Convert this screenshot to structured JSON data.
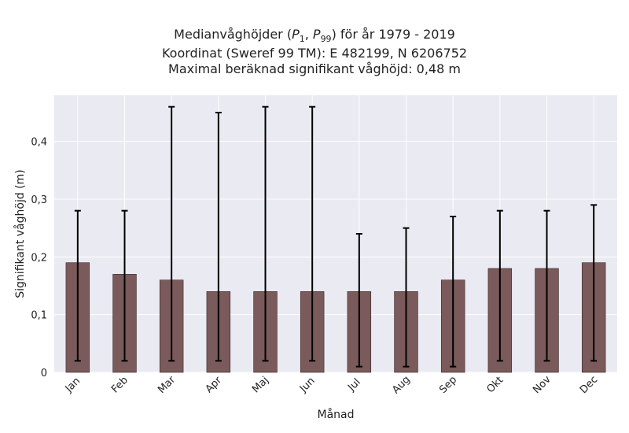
{
  "chart_data": {
    "type": "bar",
    "title_lines": [
      "Medianvåghöjder (P1, P99) för år 1979 - 2019",
      "Koordinat (Sweref 99 TM): E 482199, N 6206752",
      "Maximal beräknad signifikant våghöjd: 0,48 m"
    ],
    "xlabel": "Månad",
    "ylabel": "Signifikant våghöjd (m)",
    "categories": [
      "Jan",
      "Feb",
      "Mar",
      "Apr",
      "Maj",
      "Jun",
      "Jul",
      "Aug",
      "Sep",
      "Okt",
      "Nov",
      "Dec"
    ],
    "values": [
      0.19,
      0.17,
      0.16,
      0.14,
      0.14,
      0.14,
      0.14,
      0.14,
      0.16,
      0.18,
      0.18,
      0.19
    ],
    "p1": [
      0.02,
      0.02,
      0.02,
      0.02,
      0.02,
      0.02,
      0.01,
      0.01,
      0.01,
      0.02,
      0.02,
      0.02
    ],
    "p99": [
      0.28,
      0.28,
      0.46,
      0.45,
      0.46,
      0.46,
      0.24,
      0.25,
      0.27,
      0.28,
      0.28,
      0.29
    ],
    "ylim": [
      0,
      0.48
    ],
    "yticks": [
      0,
      0.1,
      0.2,
      0.3,
      0.4
    ],
    "ytick_labels": [
      "0",
      "0,1",
      "0,2",
      "0,3",
      "0,4"
    ],
    "grid": true,
    "colors": {
      "bar": "#7a5a5a",
      "bar_edge": "#3a2a2a",
      "error": "#000000",
      "plot_bg": "#eaeaf2",
      "grid": "#ffffff"
    }
  }
}
